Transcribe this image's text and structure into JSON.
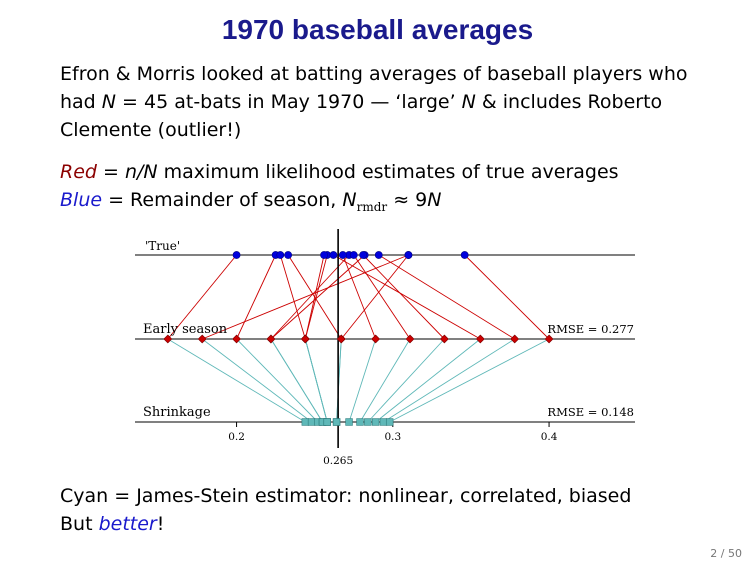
{
  "slide": {
    "title": "1970 baseball averages",
    "intro": "Efron & Morris looked at batting averages of baseball players who had N = 45 at-bats in May 1970 — ‘large’ N & includes Roberto Clemente (outlier!)",
    "intro_parts": {
      "p1": "Efron & Morris looked at batting averages of baseball players who had ",
      "n_eq": "N",
      "p2": " = 45 at-bats in May 1970 — ‘large’ ",
      "n2": "N",
      "p3": " & includes Roberto Clemente (outlier!)"
    },
    "red_line": {
      "label": "Red",
      "eq": " = ",
      "frac": "n/N",
      "rest": " maximum likelihood estimates of true averages"
    },
    "blue_line": {
      "label": "Blue",
      "eq": " = ",
      "rest": "Remainder of season, ",
      "n_sym": "N",
      "sub": "rmdr",
      "approx": " ≈ 9",
      "n_end": "N"
    },
    "bottom": {
      "line1": "Cyan = James-Stein estimator: nonlinear, correlated, biased",
      "line2_pre": "But ",
      "line2_em": "better",
      "line2_post": "!"
    },
    "page_number": "2 / 50"
  },
  "colors": {
    "title": "#1a1a8c",
    "red": "#cc0000",
    "blue": "#0000dd",
    "cyan": "#5fb8b8",
    "axis": "#000000"
  },
  "chart_data": {
    "type": "scatter",
    "title": "",
    "xlim": [
      0.135,
      0.455
    ],
    "xticks": [
      0.2,
      0.3,
      0.4
    ],
    "xtick_labels": [
      "0.2",
      "0.3",
      "0.4"
    ],
    "reference_value": 0.265,
    "reference_label": "0.265",
    "rows": [
      {
        "name": "'True'",
        "rmse": ""
      },
      {
        "name": "Early season",
        "rmse": "RMSE = 0.277"
      },
      {
        "name": "Shrinkage",
        "rmse": "RMSE = 0.148"
      }
    ],
    "players": [
      {
        "early": 0.156,
        "true": 0.2,
        "shrink": 0.244
      },
      {
        "early": 0.178,
        "true": 0.31,
        "shrink": 0.248
      },
      {
        "early": 0.2,
        "true": 0.225,
        "shrink": 0.252
      },
      {
        "early": 0.222,
        "true": 0.272,
        "shrink": 0.255
      },
      {
        "early": 0.222,
        "true": 0.282,
        "shrink": 0.255
      },
      {
        "early": 0.244,
        "true": 0.258,
        "shrink": 0.258
      },
      {
        "early": 0.244,
        "true": 0.256,
        "shrink": 0.258
      },
      {
        "early": 0.244,
        "true": 0.228,
        "shrink": 0.258
      },
      {
        "early": 0.267,
        "true": 0.233,
        "shrink": 0.264
      },
      {
        "early": 0.267,
        "true": 0.31,
        "shrink": 0.264
      },
      {
        "early": 0.289,
        "true": 0.268,
        "shrink": 0.272
      },
      {
        "early": 0.311,
        "true": 0.275,
        "shrink": 0.279
      },
      {
        "early": 0.333,
        "true": 0.281,
        "shrink": 0.284
      },
      {
        "early": 0.356,
        "true": 0.262,
        "shrink": 0.289
      },
      {
        "early": 0.378,
        "true": 0.291,
        "shrink": 0.294
      },
      {
        "early": 0.4,
        "true": 0.346,
        "shrink": 0.298
      }
    ]
  }
}
